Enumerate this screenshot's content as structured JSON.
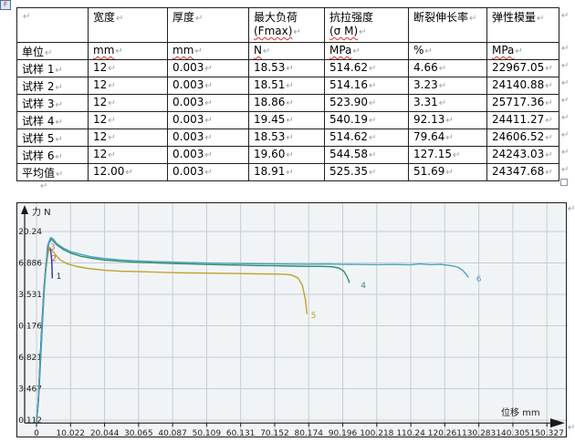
{
  "document": {
    "object_marker": "F",
    "marks": {
      "paragraph": "↵",
      "resize_handle": ""
    }
  },
  "table": {
    "columns": [
      {
        "label": ""
      },
      {
        "label": "宽度"
      },
      {
        "label": "厚度"
      },
      {
        "label": "最大负荷",
        "sub": "(Fmax)",
        "sub_wavy": true
      },
      {
        "label": "抗拉强度",
        "sub": "(σ M)",
        "sub_wavy": true
      },
      {
        "label": "断裂伸长率"
      },
      {
        "label": "弹性模量"
      }
    ],
    "rows": [
      {
        "label": "单位",
        "values": [
          "mm",
          "mm",
          "N",
          "MPa",
          "%",
          "MPa"
        ],
        "wavy": [
          true,
          true,
          true,
          true,
          false,
          true
        ]
      },
      {
        "label": "试样 1",
        "values": [
          "12",
          "0.003",
          "18.53",
          "514.62",
          "4.66",
          "22967.05"
        ]
      },
      {
        "label": "试样 2",
        "values": [
          "12",
          "0.003",
          "18.51",
          "514.16",
          "3.23",
          "24140.88"
        ]
      },
      {
        "label": "试样 3",
        "values": [
          "12",
          "0.003",
          "18.86",
          "523.90",
          "3.31",
          "25717.36"
        ]
      },
      {
        "label": "试样 4",
        "values": [
          "12",
          "0.003",
          "19.45",
          "540.19",
          "92.13",
          "24411.27"
        ]
      },
      {
        "label": "试样 5",
        "values": [
          "12",
          "0.003",
          "18.53",
          "514.62",
          "79.64",
          "24606.52"
        ]
      },
      {
        "label": "试样 6",
        "values": [
          "12",
          "0.003",
          "19.60",
          "544.58",
          "127.15",
          "24243.03"
        ]
      },
      {
        "label": "平均值",
        "values": [
          "12.00",
          "0.003",
          "18.91",
          "525.35",
          "51.69",
          "24347.68"
        ]
      }
    ]
  },
  "chart_data": {
    "type": "line",
    "title": "",
    "xlabel": "位移 mm",
    "ylabel": "力 N",
    "xlim": [
      -5.6,
      160
    ],
    "ylim": [
      -1.7,
      22.4
    ],
    "grid": true,
    "legend_position": "none",
    "x_ticks": [
      0,
      10.022,
      20.044,
      30.065,
      40.087,
      50.109,
      60.131,
      70.152,
      80.174,
      90.196,
      100.218,
      110.24,
      120.261,
      130.283,
      140.305,
      150.327
    ],
    "y_ticks": [
      0.112,
      3.467,
      6.821,
      10.176,
      13.531,
      16.886,
      20.24
    ],
    "colors": {
      "bg": "#f1f4f6",
      "grid": "#c6ccd2",
      "axis": "#1a1a1a"
    },
    "series": [
      {
        "name": "3",
        "color": "#c468b8",
        "points": [
          [
            0,
            0
          ],
          [
            0.5,
            2.1
          ],
          [
            1,
            5.8
          ],
          [
            1.6,
            10.2
          ],
          [
            2.2,
            14.0
          ],
          [
            2.8,
            16.6
          ],
          [
            3.1,
            17.9
          ],
          [
            3.31,
            18.86
          ]
        ]
      },
      {
        "name": "2",
        "color": "#c06030",
        "points": [
          [
            0,
            0
          ],
          [
            0.5,
            2.0
          ],
          [
            1,
            5.6
          ],
          [
            1.6,
            10.0
          ],
          [
            2.2,
            13.8
          ],
          [
            2.8,
            16.4
          ],
          [
            3.05,
            17.6
          ],
          [
            3.23,
            18.51
          ]
        ]
      },
      {
        "name": "1",
        "color": "#2233aa",
        "points": [
          [
            0,
            0
          ],
          [
            0.5,
            2.2
          ],
          [
            1,
            6.0
          ],
          [
            1.6,
            10.5
          ],
          [
            2.2,
            14.2
          ],
          [
            2.8,
            16.8
          ],
          [
            3.4,
            18.0
          ],
          [
            3.9,
            18.53
          ],
          [
            4.2,
            18.2
          ],
          [
            4.45,
            17.2
          ],
          [
            4.6,
            16.0
          ],
          [
            4.66,
            15.3
          ]
        ]
      },
      {
        "name": "5",
        "color": "#bfa42d",
        "points": [
          [
            0,
            0
          ],
          [
            0.5,
            2.0
          ],
          [
            1,
            5.5
          ],
          [
            1.6,
            9.5
          ],
          [
            2.2,
            13.5
          ],
          [
            2.8,
            16.3
          ],
          [
            3.4,
            17.9
          ],
          [
            3.9,
            18.53
          ],
          [
            4.5,
            18.3
          ],
          [
            5.5,
            17.8
          ],
          [
            7,
            17.2
          ],
          [
            9,
            16.8
          ],
          [
            12,
            16.5
          ],
          [
            15,
            16.3
          ],
          [
            20,
            16.1
          ],
          [
            25,
            16.0
          ],
          [
            30,
            15.95
          ],
          [
            35,
            15.9
          ],
          [
            40,
            15.85
          ],
          [
            45,
            15.82
          ],
          [
            50,
            15.8
          ],
          [
            55,
            15.78
          ],
          [
            60,
            15.75
          ],
          [
            65,
            15.72
          ],
          [
            70,
            15.7
          ],
          [
            73,
            15.68
          ],
          [
            75,
            15.6
          ],
          [
            77,
            15.3
          ],
          [
            78.3,
            14.5
          ],
          [
            79.2,
            13.0
          ],
          [
            79.64,
            11.5
          ]
        ]
      },
      {
        "name": "4",
        "color": "#2f8f63",
        "points": [
          [
            0,
            0
          ],
          [
            0.6,
            2.2
          ],
          [
            1.2,
            6.5
          ],
          [
            1.8,
            11.0
          ],
          [
            2.4,
            14.8
          ],
          [
            3,
            17.3
          ],
          [
            3.6,
            18.9
          ],
          [
            4.3,
            19.45
          ],
          [
            5,
            19.2
          ],
          [
            6,
            18.8
          ],
          [
            8,
            18.3
          ],
          [
            10,
            17.95
          ],
          [
            13,
            17.6
          ],
          [
            16,
            17.4
          ],
          [
            20,
            17.2
          ],
          [
            25,
            17.05
          ],
          [
            30,
            16.95
          ],
          [
            35,
            16.9
          ],
          [
            40,
            16.82
          ],
          [
            45,
            16.78
          ],
          [
            50,
            16.72
          ],
          [
            55,
            16.68
          ],
          [
            60,
            16.65
          ],
          [
            65,
            16.6
          ],
          [
            70,
            16.58
          ],
          [
            75,
            16.55
          ],
          [
            80,
            16.52
          ],
          [
            84,
            16.52
          ],
          [
            87,
            16.48
          ],
          [
            89,
            16.35
          ],
          [
            90.5,
            16.0
          ],
          [
            91.5,
            15.4
          ],
          [
            92.13,
            14.8
          ]
        ]
      },
      {
        "name": "6",
        "color": "#4ba3c3",
        "points": [
          [
            0,
            0
          ],
          [
            0.6,
            2.5
          ],
          [
            1.2,
            7.0
          ],
          [
            1.8,
            11.5
          ],
          [
            2.4,
            15.0
          ],
          [
            3,
            17.5
          ],
          [
            3.6,
            19.1
          ],
          [
            4.2,
            19.6
          ],
          [
            5,
            19.4
          ],
          [
            6,
            18.95
          ],
          [
            8,
            18.45
          ],
          [
            10,
            18.1
          ],
          [
            13,
            17.8
          ],
          [
            16,
            17.55
          ],
          [
            20,
            17.35
          ],
          [
            25,
            17.2
          ],
          [
            30,
            17.1
          ],
          [
            35,
            17.02
          ],
          [
            40,
            16.97
          ],
          [
            45,
            16.92
          ],
          [
            50,
            16.88
          ],
          [
            55,
            16.85
          ],
          [
            60,
            16.82
          ],
          [
            65,
            16.8
          ],
          [
            70,
            16.78
          ],
          [
            75,
            16.76
          ],
          [
            80,
            16.75
          ],
          [
            85,
            16.77
          ],
          [
            90,
            16.73
          ],
          [
            95,
            16.72
          ],
          [
            100,
            16.7
          ],
          [
            105,
            16.72
          ],
          [
            110,
            16.68
          ],
          [
            113,
            16.78
          ],
          [
            116,
            16.7
          ],
          [
            119,
            16.73
          ],
          [
            122,
            16.6
          ],
          [
            124,
            16.45
          ],
          [
            125.5,
            16.1
          ],
          [
            126.5,
            15.7
          ],
          [
            127.15,
            15.4
          ]
        ]
      }
    ],
    "series_labels": [
      {
        "text": "1",
        "x": 5.8,
        "y": 15.2,
        "color": "#333344"
      },
      {
        "text": "2",
        "x": 4.4,
        "y": 17.1,
        "color": "#c06030"
      },
      {
        "text": "3",
        "x": 4.0,
        "y": 18.3,
        "color": "#c468b8"
      },
      {
        "text": "4",
        "x": 95.5,
        "y": 14.2,
        "color": "#2f8f63"
      },
      {
        "text": "5",
        "x": 80.8,
        "y": 11.0,
        "color": "#bfa42d"
      },
      {
        "text": "6",
        "x": 129.5,
        "y": 14.9,
        "color": "#4ba3c3"
      }
    ]
  }
}
